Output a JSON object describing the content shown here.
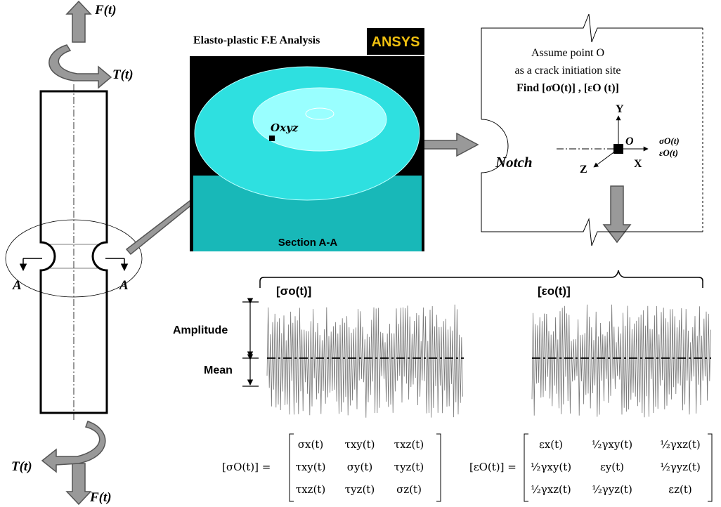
{
  "specimen": {
    "force_top": "F(t)",
    "torque_top": "T(t)",
    "torque_bottom": "T(t)",
    "force_bottom": "F(t)",
    "section_left": "A",
    "section_right": "A"
  },
  "fe_analysis": {
    "title": "Elasto-plastic F.E Analysis",
    "logo": "ANSYS",
    "point_label": "Oxyz",
    "section_label": "Section A-A"
  },
  "notch_detail": {
    "line1": "Assume point O",
    "line2": "as a crack initiation site",
    "line3": "Find [σO(t)] , [εO (t)]",
    "axis_y": "Y",
    "origin": "O",
    "axis_x": "X",
    "axis_z": "Z",
    "notch": "Notch",
    "stress": "σO(t)",
    "strain": "εO(t)"
  },
  "signals": {
    "stress_title": "[σo(t)]",
    "strain_title": "[εo(t)]",
    "amplitude": "Amplitude",
    "mean": "Mean"
  },
  "stress_matrix": {
    "lhs": "[σO(t)] =",
    "rows": [
      [
        "σx(t)",
        "τxy(t)",
        "τxz(t)"
      ],
      [
        "τxy(t)",
        "σy(t)",
        "τyz(t)"
      ],
      [
        "τxz(t)",
        "τyz(t)",
        "σz(t)"
      ]
    ]
  },
  "strain_matrix": {
    "lhs": "[εO(t)] =",
    "rows": [
      [
        "εx(t)",
        "½γxy(t)",
        "½γxz(t)"
      ],
      [
        "½γxy(t)",
        "εy(t)",
        "½γyz(t)"
      ],
      [
        "½γxz(t)",
        "½γyz(t)",
        "εz(t)"
      ]
    ]
  }
}
